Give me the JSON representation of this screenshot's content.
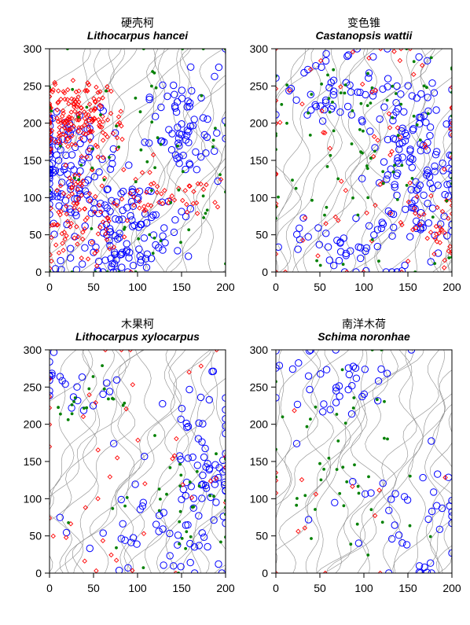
{
  "colors": {
    "large_circle": "#0000ff",
    "small_diamond": "#ff0000",
    "dot": "#008000",
    "contour": "#8a8a8a"
  },
  "chart_data": [
    {
      "type": "scatter",
      "title_cn": "硬壳柯",
      "title_latin": "Lithocarpus hancei",
      "xlim": [
        0,
        200
      ],
      "ylim": [
        0,
        300
      ],
      "xticks": [
        "0",
        "50",
        "100",
        "150",
        "200"
      ],
      "yticks": [
        "0",
        "50",
        "100",
        "150",
        "200",
        "250",
        "300"
      ],
      "xlabel": "",
      "ylabel": "",
      "grid": false,
      "seed": 11,
      "series": [
        {
          "marker": "circle",
          "color": "#0000ff",
          "count": 300,
          "clusters": [
            [
              20,
              140,
              25,
              40,
              0.25
            ],
            [
              90,
              60,
              30,
              30,
              0.25
            ],
            [
              150,
              200,
              25,
              40,
              0.2
            ],
            [
              60,
              10,
              30,
              10,
              0.05
            ]
          ]
        },
        {
          "marker": "diamond",
          "color": "#ff0000",
          "count": 330,
          "clusters": [
            [
              30,
              210,
              25,
              25,
              0.55
            ],
            [
              35,
              80,
              25,
              40,
              0.3
            ],
            [
              130,
              110,
              30,
              15,
              0.15
            ]
          ]
        },
        {
          "marker": "dot",
          "color": "#008000",
          "count": 70,
          "clusters": [
            [
              100,
              150,
              60,
              100,
              1.0
            ]
          ]
        }
      ]
    },
    {
      "type": "scatter",
      "title_cn": "变色锥",
      "title_latin": "Castanopsis wattii",
      "xlim": [
        0,
        200
      ],
      "ylim": [
        0,
        300
      ],
      "xticks": [
        "0",
        "50",
        "100",
        "150",
        "200"
      ],
      "yticks": [
        "0",
        "50",
        "100",
        "150",
        "200",
        "250",
        "300"
      ],
      "xlabel": "",
      "ylabel": "",
      "grid": false,
      "seed": 23,
      "series": [
        {
          "marker": "circle",
          "color": "#0000ff",
          "count": 230,
          "clusters": [
            [
              170,
              120,
              25,
              60,
              0.45
            ],
            [
              60,
              240,
              30,
              25,
              0.2
            ],
            [
              130,
              190,
              30,
              50,
              0.2
            ],
            [
              80,
              40,
              40,
              30,
              0.15
            ]
          ]
        },
        {
          "marker": "diamond",
          "color": "#ff0000",
          "count": 110,
          "clusters": [
            [
              100,
              150,
              70,
              100,
              0.7
            ],
            [
              180,
              60,
              20,
              30,
              0.3
            ]
          ]
        },
        {
          "marker": "dot",
          "color": "#008000",
          "count": 90,
          "clusters": [
            [
              110,
              230,
              60,
              40,
              0.5
            ],
            [
              100,
              110,
              60,
              60,
              0.5
            ]
          ]
        }
      ]
    },
    {
      "type": "scatter",
      "title_cn": "木果柯",
      "title_latin": "Lithocarpus xylocarpus",
      "xlim": [
        0,
        200
      ],
      "ylim": [
        0,
        300
      ],
      "xticks": [
        "0",
        "50",
        "100",
        "150",
        "200"
      ],
      "yticks": [
        "0",
        "50",
        "100",
        "150",
        "200",
        "250",
        "300"
      ],
      "xlabel": "",
      "ylabel": "",
      "grid": false,
      "seed": 37,
      "series": [
        {
          "marker": "circle",
          "color": "#0000ff",
          "count": 130,
          "clusters": [
            [
              175,
              150,
              25,
              70,
              0.55
            ],
            [
              120,
              50,
              40,
              40,
              0.3
            ],
            [
              30,
              250,
              30,
              20,
              0.15
            ]
          ]
        },
        {
          "marker": "diamond",
          "color": "#ff0000",
          "count": 45,
          "clusters": [
            [
              100,
              130,
              70,
              90,
              1.0
            ]
          ]
        },
        {
          "marker": "dot",
          "color": "#008000",
          "count": 55,
          "clusters": [
            [
              40,
              230,
              25,
              20,
              0.4
            ],
            [
              150,
              90,
              40,
              40,
              0.6
            ]
          ]
        }
      ]
    },
    {
      "type": "scatter",
      "title_cn": "南洋木荷",
      "title_latin": "Schima noronhae",
      "xlim": [
        0,
        200
      ],
      "ylim": [
        0,
        300
      ],
      "xticks": [
        "0",
        "50",
        "100",
        "150",
        "200"
      ],
      "yticks": [
        "0",
        "50",
        "100",
        "150",
        "200",
        "250",
        "300"
      ],
      "xlabel": "",
      "ylabel": "",
      "grid": false,
      "seed": 53,
      "series": [
        {
          "marker": "circle",
          "color": "#0000ff",
          "count": 80,
          "clusters": [
            [
              60,
              260,
              40,
              30,
              0.35
            ],
            [
              130,
              60,
              50,
              40,
              0.45
            ],
            [
              185,
              100,
              15,
              50,
              0.2
            ]
          ]
        },
        {
          "marker": "diamond",
          "color": "#ff0000",
          "count": 15,
          "clusters": [
            [
              60,
              100,
              50,
              80,
              1.0
            ]
          ]
        },
        {
          "marker": "dot",
          "color": "#008000",
          "count": 45,
          "clusters": [
            [
              60,
              170,
              40,
              70,
              0.7
            ],
            [
              130,
              80,
              50,
              30,
              0.3
            ]
          ]
        }
      ]
    }
  ]
}
